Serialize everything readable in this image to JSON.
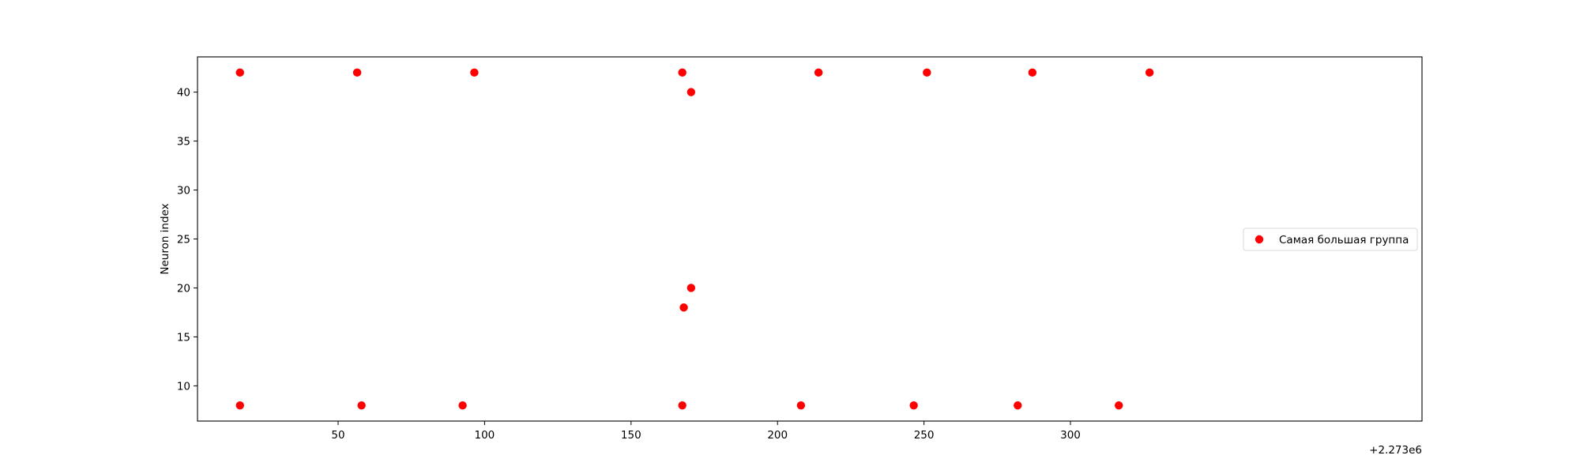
{
  "chart_data": {
    "type": "scatter",
    "title": "",
    "xlabel": "",
    "ylabel": "Neuron index",
    "x_offset_label": "+2.273e6",
    "xlim": [
      2273002,
      2273420
    ],
    "ylim": [
      6.4,
      43.6
    ],
    "x_ticks": [
      {
        "value": 2273050,
        "label": "50"
      },
      {
        "value": 2273100,
        "label": "100"
      },
      {
        "value": 2273150,
        "label": "150"
      },
      {
        "value": 2273200,
        "label": "200"
      },
      {
        "value": 2273250,
        "label": "250"
      },
      {
        "value": 2273300,
        "label": "300"
      }
    ],
    "y_ticks": [
      {
        "value": 10,
        "label": "10"
      },
      {
        "value": 15,
        "label": "15"
      },
      {
        "value": 20,
        "label": "20"
      },
      {
        "value": 25,
        "label": "25"
      },
      {
        "value": 30,
        "label": "30"
      },
      {
        "value": 35,
        "label": "35"
      },
      {
        "value": 40,
        "label": "40"
      }
    ],
    "grid": false,
    "legend_position": "center-right",
    "series": [
      {
        "name": "Самая большая группа",
        "color": "#ff0000",
        "points": [
          {
            "x": 2273016.5,
            "y": 42
          },
          {
            "x": 2273056.5,
            "y": 42
          },
          {
            "x": 2273096.5,
            "y": 42
          },
          {
            "x": 2273167.5,
            "y": 42
          },
          {
            "x": 2273214,
            "y": 42
          },
          {
            "x": 2273251,
            "y": 42
          },
          {
            "x": 2273287,
            "y": 42
          },
          {
            "x": 2273327,
            "y": 42
          },
          {
            "x": 2273170.5,
            "y": 40
          },
          {
            "x": 2273170.5,
            "y": 20
          },
          {
            "x": 2273168,
            "y": 18
          },
          {
            "x": 2273016.5,
            "y": 8
          },
          {
            "x": 2273058,
            "y": 8
          },
          {
            "x": 2273092.5,
            "y": 8
          },
          {
            "x": 2273167.5,
            "y": 8
          },
          {
            "x": 2273208,
            "y": 8
          },
          {
            "x": 2273246.5,
            "y": 8
          },
          {
            "x": 2273282,
            "y": 8
          },
          {
            "x": 2273316.5,
            "y": 8
          }
        ]
      }
    ]
  }
}
